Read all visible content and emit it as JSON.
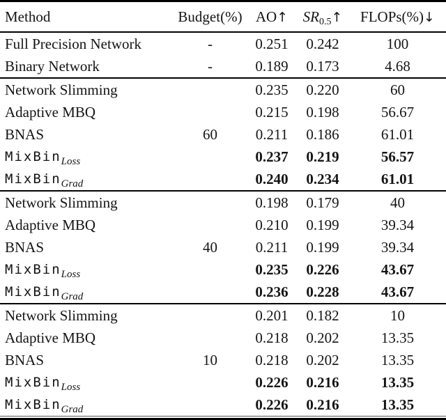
{
  "page": {
    "background_color": "#ffffff",
    "text_color": "#141414",
    "rule_color": "#000000"
  },
  "table": {
    "headers": {
      "method": "Method",
      "budget": "Budget(%)",
      "ao": "AO",
      "ao_arrow": "↑",
      "sr_base": "SR",
      "sr_sub": "0.5",
      "sr_arrow": "↑",
      "flops": "FLOPs(%)",
      "flops_arrow": "↓"
    },
    "groups": [
      {
        "rows": [
          {
            "method": "Full Precision Network",
            "budget": "-",
            "ao": "0.251",
            "sr": "0.242",
            "flops": "100",
            "bold": false,
            "mono": false
          },
          {
            "method": "Binary Network",
            "budget": "-",
            "ao": "0.189",
            "sr": "0.173",
            "flops": "4.68",
            "bold": false,
            "mono": false
          }
        ]
      },
      {
        "budget": "60",
        "budget_row_index": 2,
        "rows": [
          {
            "method": "Network Slimming",
            "ao": "0.235",
            "sr": "0.220",
            "flops": "60",
            "bold": false,
            "mono": false
          },
          {
            "method": "Adaptive MBQ",
            "ao": "0.215",
            "sr": "0.198",
            "flops": "56.67",
            "bold": false,
            "mono": false
          },
          {
            "method": "BNAS",
            "ao": "0.211",
            "sr": "0.186",
            "flops": "61.01",
            "bold": false,
            "mono": false
          },
          {
            "method": "MixBin",
            "method_sub": "Loss",
            "ao": "0.237",
            "sr": "0.219",
            "flops": "56.57",
            "bold": true,
            "mono": true
          },
          {
            "method": "MixBin",
            "method_sub": "Grad",
            "ao": "0.240",
            "sr": "0.234",
            "flops": "61.01",
            "bold": true,
            "mono": true
          }
        ]
      },
      {
        "budget": "40",
        "budget_row_index": 2,
        "rows": [
          {
            "method": "Network Slimming",
            "ao": "0.198",
            "sr": "0.179",
            "flops": "40",
            "bold": false,
            "mono": false
          },
          {
            "method": "Adaptive MBQ",
            "ao": "0.210",
            "sr": "0.199",
            "flops": "39.34",
            "bold": false,
            "mono": false
          },
          {
            "method": "BNAS",
            "ao": "0.211",
            "sr": "0.199",
            "flops": "39.34",
            "bold": false,
            "mono": false
          },
          {
            "method": "MixBin",
            "method_sub": "Loss",
            "ao": "0.235",
            "sr": "0.226",
            "flops": "43.67",
            "bold": true,
            "mono": true
          },
          {
            "method": "MixBin",
            "method_sub": "Grad",
            "ao": "0.236",
            "sr": "0.228",
            "flops": "43.67",
            "bold": true,
            "mono": true
          }
        ]
      },
      {
        "budget": "10",
        "budget_row_index": 2,
        "rows": [
          {
            "method": "Network Slimming",
            "ao": "0.201",
            "sr": "0.182",
            "flops": "10",
            "bold": false,
            "mono": false
          },
          {
            "method": "Adaptive MBQ",
            "ao": "0.218",
            "sr": "0.202",
            "flops": "13.35",
            "bold": false,
            "mono": false
          },
          {
            "method": "BNAS",
            "ao": "0.218",
            "sr": "0.202",
            "flops": "13.35",
            "bold": false,
            "mono": false
          },
          {
            "method": "MixBin",
            "method_sub": "Loss",
            "ao": "0.226",
            "sr": "0.216",
            "flops": "13.35",
            "bold": true,
            "mono": true
          },
          {
            "method": "MixBin",
            "method_sub": "Grad",
            "ao": "0.226",
            "sr": "0.216",
            "flops": "13.35",
            "bold": true,
            "mono": true
          }
        ]
      }
    ]
  }
}
